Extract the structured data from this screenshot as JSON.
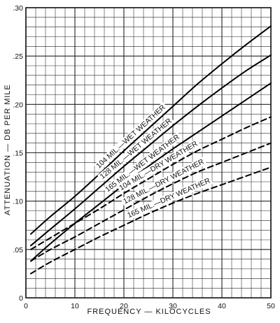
{
  "chart_data": {
    "type": "line",
    "title": "",
    "xlabel": "FREQUENCY — KILOCYCLES",
    "ylabel": "ATTENUATION — DB PER MILE",
    "xlim": [
      0,
      50
    ],
    "ylim": [
      0,
      0.3
    ],
    "grid": true,
    "x_ticks": [
      "0",
      "10",
      "20",
      "30",
      "40",
      "50"
    ],
    "y_ticks": [
      "0",
      ".05",
      ".10",
      ".15",
      ".20",
      ".25",
      ".30"
    ],
    "series": [
      {
        "name": "104 MIL.—WET WEATHER",
        "style": "solid",
        "x": [
          1,
          5,
          10,
          15,
          20,
          25,
          30,
          35,
          40,
          45,
          50
        ],
        "y": [
          0.066,
          0.084,
          0.105,
          0.128,
          0.152,
          0.175,
          0.198,
          0.221,
          0.242,
          0.262,
          0.281
        ]
      },
      {
        "name": "128 MIL.—WET WEATHER",
        "style": "solid",
        "x": [
          1,
          5,
          10,
          15,
          20,
          25,
          30,
          35,
          40,
          45,
          50
        ],
        "y": [
          0.054,
          0.071,
          0.092,
          0.114,
          0.136,
          0.157,
          0.178,
          0.198,
          0.217,
          0.235,
          0.251
        ]
      },
      {
        "name": "165 MIL.—WET WEATHER",
        "style": "solid",
        "x": [
          1,
          5,
          10,
          15,
          20,
          25,
          30,
          35,
          40,
          45,
          50
        ],
        "y": [
          0.038,
          0.056,
          0.077,
          0.097,
          0.117,
          0.136,
          0.154,
          0.171,
          0.188,
          0.205,
          0.222
        ]
      },
      {
        "name": "104 MIL.—DRY WEATHER",
        "style": "dashed",
        "x": [
          1,
          5,
          10,
          15,
          20,
          25,
          30,
          35,
          40,
          45,
          50
        ],
        "y": [
          0.05,
          0.062,
          0.077,
          0.092,
          0.108,
          0.123,
          0.138,
          0.152,
          0.164,
          0.176,
          0.187
        ]
      },
      {
        "name": "128 MIL.—DRY WEATHER",
        "style": "dashed",
        "x": [
          1,
          5,
          10,
          15,
          20,
          25,
          30,
          35,
          40,
          45,
          50
        ],
        "y": [
          0.038,
          0.05,
          0.063,
          0.077,
          0.091,
          0.105,
          0.118,
          0.13,
          0.14,
          0.15,
          0.16
        ]
      },
      {
        "name": "165 MIL.—DRY WEATHER",
        "style": "dashed",
        "x": [
          1,
          5,
          10,
          15,
          20,
          25,
          30,
          35,
          40,
          45,
          50
        ],
        "y": [
          0.025,
          0.037,
          0.05,
          0.063,
          0.075,
          0.087,
          0.098,
          0.108,
          0.117,
          0.126,
          0.135
        ]
      }
    ],
    "annotations": [
      {
        "text": "104 MIL.—WET WEATHER",
        "series": 0
      },
      {
        "text": "128 MIL.—WET WEATHER",
        "series": 1
      },
      {
        "text": "165 MIL.—WET WEATHER",
        "series": 2
      },
      {
        "text": "104 MIL.—DRY WEATHER",
        "series": 3
      },
      {
        "text": "128 MIL.—DRY WEATHER",
        "series": 4
      },
      {
        "text": "165 MIL.—DRY WEATHER",
        "series": 5
      }
    ]
  }
}
